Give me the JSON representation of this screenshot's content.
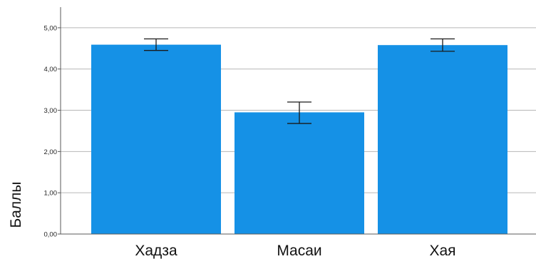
{
  "chart_data": {
    "type": "bar",
    "categories": [
      "Хадза",
      "Масаи",
      "Хая"
    ],
    "values": [
      4.59,
      2.95,
      4.58
    ],
    "error_bars": {
      "lower": [
        4.45,
        2.68,
        4.43
      ],
      "upper": [
        4.73,
        3.2,
        4.73
      ]
    },
    "ylabel": "Баллы",
    "xlabel": "",
    "ylim": [
      0,
      5.5
    ],
    "yticks": [
      0,
      1,
      2,
      3,
      4,
      5
    ],
    "ytick_labels": [
      "0,00",
      "1,00",
      "2,00",
      "3,00",
      "4,00",
      "5,00"
    ],
    "grid": true,
    "legend": "none",
    "colors": {
      "bar": "#1591e6",
      "grid": "#b7b7b7",
      "axis": "#5a5a5a",
      "error_bar": "#1a1a1a"
    }
  }
}
